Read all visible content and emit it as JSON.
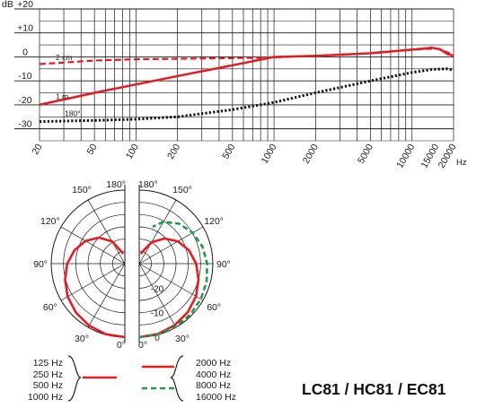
{
  "model_title": "LC81 / HC81 / EC81",
  "colors": {
    "red": "#e31b23",
    "green": "#1e9a48",
    "black": "#111111",
    "grid": "#1a1a1a"
  },
  "legend": {
    "low_group": [
      "125 Hz",
      "250 Hz",
      "500 Hz",
      "1000 Hz"
    ],
    "high_red": [
      "2000 Hz",
      "4000 Hz"
    ],
    "high_green": [
      "8000 Hz",
      "16000 Hz"
    ]
  },
  "chart_data": [
    {
      "type": "line",
      "title": "",
      "xlabel": "Hz",
      "ylabel": "dB",
      "x_scale": "log",
      "xlim": [
        20,
        20000
      ],
      "ylim": [
        -35,
        20
      ],
      "y_ticks": [
        "+20",
        "+10",
        "0",
        "-10",
        "-20",
        "-30"
      ],
      "x_ticks": [
        "20",
        "50",
        "100",
        "200",
        "500",
        "1000",
        "2000",
        "5000",
        "10000",
        "15000",
        "20000"
      ],
      "x_unit_label": "Hz",
      "y_unit_label": "dB",
      "series": [
        {
          "name": "2 cm",
          "color": "red",
          "style": "dashed",
          "points": [
            [
              20,
              -3
            ],
            [
              50,
              -1.5
            ],
            [
              100,
              -1
            ],
            [
              200,
              -0.8
            ],
            [
              500,
              -0.5
            ],
            [
              1000,
              -0.2
            ],
            [
              2000,
              0.5
            ],
            [
              5000,
              1.5
            ],
            [
              10000,
              3
            ],
            [
              15000,
              3.5
            ],
            [
              17000,
              2.5
            ],
            [
              20000,
              0.8
            ]
          ]
        },
        {
          "name": "1 m",
          "color": "red",
          "style": "solid",
          "points": [
            [
              20,
              -20
            ],
            [
              50,
              -15
            ],
            [
              100,
              -11.5
            ],
            [
              200,
              -8
            ],
            [
              500,
              -3.5
            ],
            [
              1000,
              0
            ],
            [
              2000,
              0.4
            ],
            [
              5000,
              1.5
            ],
            [
              10000,
              3
            ],
            [
              14000,
              3.8
            ],
            [
              16000,
              3.2
            ],
            [
              18000,
              1.2
            ],
            [
              20000,
              0.5
            ]
          ]
        },
        {
          "name": "180°",
          "color": "black",
          "style": "dotted",
          "points": [
            [
              20,
              -27
            ],
            [
              50,
              -26.5
            ],
            [
              100,
              -26
            ],
            [
              200,
              -25
            ],
            [
              500,
              -22
            ],
            [
              1000,
              -19
            ],
            [
              2000,
              -15
            ],
            [
              5000,
              -10
            ],
            [
              10000,
              -6.5
            ],
            [
              14000,
              -5.2
            ],
            [
              18000,
              -5
            ],
            [
              20000,
              -5.5
            ]
          ]
        }
      ]
    },
    {
      "type": "polar",
      "title": "",
      "radial_ticks": [
        "0",
        "-10",
        "-20"
      ],
      "angle_labels_left": [
        "180°",
        "150°",
        "120°",
        "90°",
        "60°",
        "30°",
        "0°"
      ],
      "angle_labels_right": [
        "180°",
        "150°",
        "120°",
        "90°",
        "60°",
        "30°",
        "0°"
      ],
      "radial_range_db": [
        -30,
        0
      ],
      "series": [
        {
          "name": "125 Hz / 250 Hz / 500 Hz / 1000 Hz",
          "side": "left",
          "color": "red",
          "style": "solid",
          "points_deg_db": [
            [
              0,
              0
            ],
            [
              15,
              -0.2
            ],
            [
              30,
              -0.8
            ],
            [
              45,
              -1.8
            ],
            [
              60,
              -3.1
            ],
            [
              75,
              -4.8
            ],
            [
              90,
              -6.5
            ],
            [
              105,
              -8.8
            ],
            [
              120,
              -11.5
            ],
            [
              135,
              -15
            ],
            [
              150,
              -19.5
            ],
            [
              165,
              -25
            ],
            [
              170,
              -26
            ]
          ]
        },
        {
          "name": "2000 Hz / 4000 Hz",
          "side": "right",
          "color": "red",
          "style": "solid",
          "points_deg_db": [
            [
              0,
              0
            ],
            [
              15,
              -0.3
            ],
            [
              30,
              -1
            ],
            [
              45,
              -2
            ],
            [
              60,
              -3.3
            ],
            [
              75,
              -5
            ],
            [
              90,
              -6.8
            ],
            [
              105,
              -9
            ],
            [
              120,
              -11.8
            ],
            [
              135,
              -15.5
            ],
            [
              150,
              -20
            ],
            [
              165,
              -25
            ],
            [
              170,
              -26
            ]
          ]
        },
        {
          "name": "8000 Hz / 16000 Hz",
          "side": "right",
          "color": "green",
          "style": "dashed",
          "points_deg_db": [
            [
              0,
              0
            ],
            [
              15,
              -0.1
            ],
            [
              30,
              -0.3
            ],
            [
              45,
              -0.6
            ],
            [
              60,
              -1
            ],
            [
              75,
              -1.6
            ],
            [
              90,
              -2.3
            ],
            [
              105,
              -3.3
            ],
            [
              120,
              -4.8
            ],
            [
              135,
              -7
            ],
            [
              150,
              -10.3
            ],
            [
              160,
              -14
            ]
          ]
        }
      ]
    }
  ]
}
